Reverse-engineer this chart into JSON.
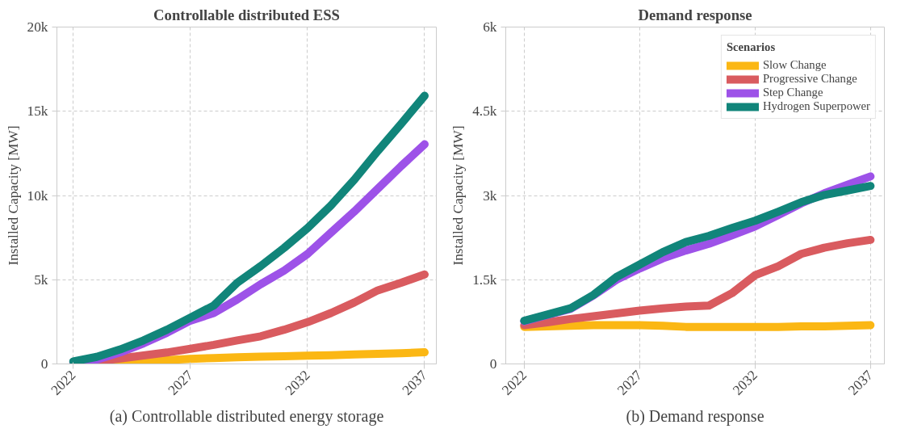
{
  "chart_data": [
    {
      "type": "line",
      "title": "Controllable distributed ESS",
      "ylabel": "Installed Capacity [MW]",
      "annotations": [
        "(a) Controllable distributed energy storage"
      ],
      "x": [
        2022,
        2023,
        2024,
        2025,
        2026,
        2027,
        2028,
        2029,
        2030,
        2031,
        2032,
        2033,
        2034,
        2035,
        2036,
        2037
      ],
      "xlim": [
        2021.3,
        2037.5
      ],
      "xticks": [
        2022,
        2027,
        2032,
        2037
      ],
      "ylim": [
        0,
        20000
      ],
      "yticks": [
        0,
        {
          "value": 5000,
          "label": "5k"
        },
        {
          "value": 10000,
          "label": "10k"
        },
        {
          "value": 15000,
          "label": "15k"
        },
        {
          "value": 20000,
          "label": "20k"
        }
      ],
      "grid": true,
      "legend": false,
      "line_style": "solid",
      "marker": "none",
      "series": [
        {
          "color": "#fbb714",
          "values": [
            0,
            50,
            100,
            170,
            230,
            300,
            350,
            400,
            430,
            460,
            490,
            520,
            560,
            600,
            640,
            690
          ]
        },
        {
          "color": "#d95b5f",
          "values": [
            null,
            150,
            320,
            500,
            680,
            900,
            1130,
            1400,
            1640,
            2030,
            2480,
            3020,
            3650,
            4370,
            4820,
            5310
          ]
        },
        {
          "color": "#9d52e8",
          "values": [
            100,
            250,
            680,
            1220,
            1850,
            2570,
            3020,
            3830,
            4730,
            5540,
            6530,
            7790,
            9050,
            10400,
            11750,
            13040
          ]
        },
        {
          "color": "#11857a",
          "values": [
            150,
            420,
            860,
            1400,
            2030,
            2750,
            3470,
            4820,
            5810,
            6890,
            8060,
            9410,
            10940,
            12640,
            14260,
            15920
          ]
        }
      ]
    },
    {
      "type": "line",
      "title": "Demand response",
      "ylabel": "Installed Capacity [MW]",
      "annotations": [
        "(b) Demand response"
      ],
      "legend_title": "Scenarios",
      "x": [
        2022,
        2023,
        2024,
        2025,
        2026,
        2027,
        2028,
        2029,
        2030,
        2031,
        2032,
        2033,
        2034,
        2035,
        2036,
        2037
      ],
      "xlim": [
        2021.2,
        2037.6
      ],
      "xticks": [
        2022,
        2027,
        2032,
        2037
      ],
      "ylim": [
        0,
        6000
      ],
      "yticks": [
        0,
        {
          "value": 1500,
          "label": "1.5k"
        },
        {
          "value": 3000,
          "label": "3k"
        },
        {
          "value": 4500,
          "label": "4.5k"
        },
        {
          "value": 6000,
          "label": "6k"
        }
      ],
      "grid": true,
      "legend": "top right",
      "line_style": "solid",
      "marker": "none",
      "series": [
        {
          "name": "Slow Change",
          "color": "#fbb714",
          "values": [
            660,
            670,
            680,
            690,
            690,
            690,
            680,
            660,
            660,
            660,
            660,
            660,
            670,
            670,
            680,
            690
          ]
        },
        {
          "name": "Progressive Change",
          "color": "#d95b5f",
          "values": [
            690,
            740,
            800,
            850,
            900,
            950,
            990,
            1020,
            1040,
            1260,
            1580,
            1740,
            1960,
            2070,
            2150,
            2210
          ]
        },
        {
          "name": "Step Change",
          "color": "#9d52e8",
          "values": [
            760,
            870,
            980,
            1220,
            1500,
            1700,
            1880,
            2020,
            2140,
            2290,
            2450,
            2650,
            2860,
            3040,
            3190,
            3340
          ]
        },
        {
          "name": "Hydrogen Superpower",
          "color": "#11857a",
          "values": [
            770,
            880,
            990,
            1230,
            1550,
            1770,
            1990,
            2170,
            2280,
            2420,
            2550,
            2710,
            2880,
            3010,
            3090,
            3170
          ]
        }
      ]
    }
  ]
}
